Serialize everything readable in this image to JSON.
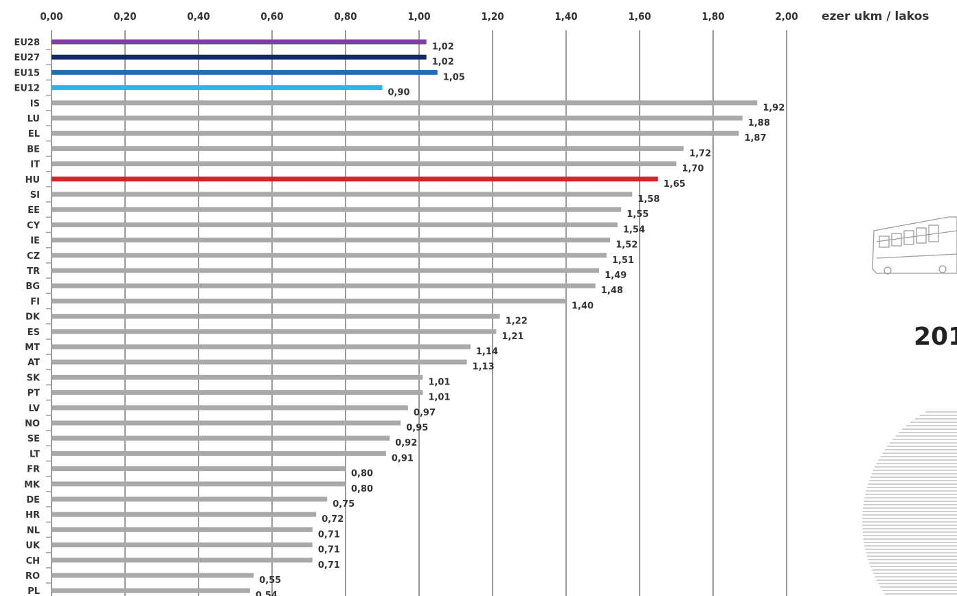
{
  "chart_data": {
    "type": "bar",
    "orientation": "horizontal",
    "unit_label": "ezer ukm / lakos",
    "xlim": [
      0,
      2
    ],
    "x_ticks": [
      "0,00",
      "0,20",
      "0,40",
      "0,60",
      "0,80",
      "1,00",
      "1,20",
      "1,40",
      "1,60",
      "1,80",
      "2,00"
    ],
    "x_tick_values": [
      0,
      0.2,
      0.4,
      0.6,
      0.8,
      1.0,
      1.2,
      1.4,
      1.6,
      1.8,
      2.0
    ],
    "grid": "vertical",
    "categories": [
      "EU28",
      "EU27",
      "EU15",
      "EU12",
      "IS",
      "LU",
      "EL",
      "BE",
      "IT",
      "HU",
      "SI",
      "EE",
      "CY",
      "IE",
      "CZ",
      "TR",
      "BG",
      "FI",
      "DK",
      "ES",
      "MT",
      "AT",
      "SK",
      "PT",
      "LV",
      "NO",
      "SE",
      "LT",
      "FR",
      "MK",
      "DE",
      "HR",
      "NL",
      "UK",
      "CH",
      "RO",
      "PL"
    ],
    "values": [
      1.02,
      1.02,
      1.05,
      0.9,
      1.92,
      1.88,
      1.87,
      1.72,
      1.7,
      1.65,
      1.58,
      1.55,
      1.54,
      1.52,
      1.51,
      1.49,
      1.48,
      1.4,
      1.22,
      1.21,
      1.14,
      1.13,
      1.01,
      1.01,
      0.97,
      0.95,
      0.92,
      0.91,
      0.8,
      0.8,
      0.75,
      0.72,
      0.71,
      0.71,
      0.71,
      0.55,
      0.54
    ],
    "value_labels": [
      "1,02",
      "1,02",
      "1,05",
      "0,90",
      "1,92",
      "1,88",
      "1,87",
      "1,72",
      "1,70",
      "1,65",
      "1,58",
      "1,55",
      "1,54",
      "1,52",
      "1,51",
      "1,49",
      "1,48",
      "1,40",
      "1,22",
      "1,21",
      "1,14",
      "1,13",
      "1,01",
      "1,01",
      "0,97",
      "0,95",
      "0,92",
      "0,91",
      "0,80",
      "0,80",
      "0,75",
      "0,72",
      "0,71",
      "0,71",
      "0,71",
      "0,55",
      "0,54"
    ],
    "colors": {
      "EU28": "#7b3fa6",
      "EU27": "#102a6b",
      "EU15": "#1f6fc0",
      "EU12": "#2bb6ea",
      "HU": "#d8232a",
      "default": "#a9a9a9"
    }
  },
  "side_panel": {
    "year_text": "201",
    "bus_icon": "bus-icon",
    "globe_icon": "striped-circle-graphic"
  }
}
